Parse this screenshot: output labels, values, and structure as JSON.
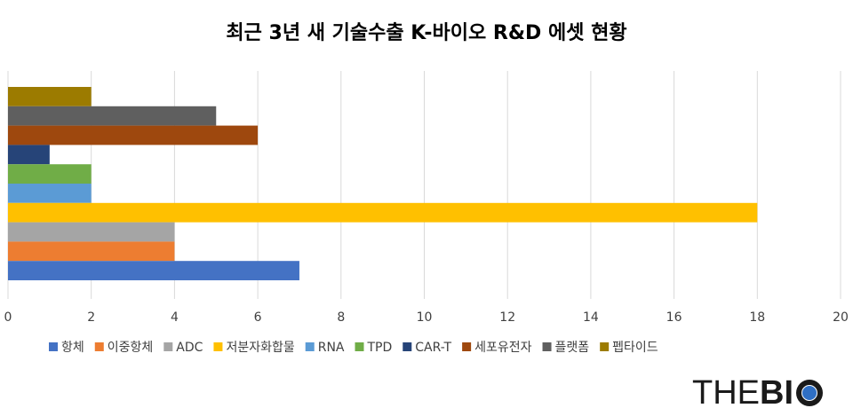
{
  "chart_data": {
    "type": "bar",
    "orientation": "horizontal",
    "title": "최근 3년 새 기술수출 K-바이오 R&D 에셋 현황",
    "categories": [
      "펩타이드",
      "플랫폼",
      "세포유전자",
      "CAR-T",
      "TPD",
      "RNA",
      "저분자화합물",
      "ADC",
      "이중항체",
      "항체"
    ],
    "values": [
      2,
      5,
      6,
      1,
      2,
      2,
      18,
      4,
      4,
      7
    ],
    "colors": [
      "#9c7b00",
      "#5f5f5f",
      "#9e480e",
      "#264478",
      "#70ad47",
      "#5b9bd5",
      "#ffc000",
      "#a5a5a5",
      "#ed7d31",
      "#4472c4"
    ],
    "xlim": [
      0,
      20
    ],
    "xticks": [
      0,
      2,
      4,
      6,
      8,
      10,
      12,
      14,
      16,
      18,
      20
    ],
    "grid": true,
    "legend": "bottom",
    "xlabel": "",
    "ylabel": ""
  },
  "brand": {
    "the": "THE",
    "bi": "BI",
    "o": "O"
  }
}
